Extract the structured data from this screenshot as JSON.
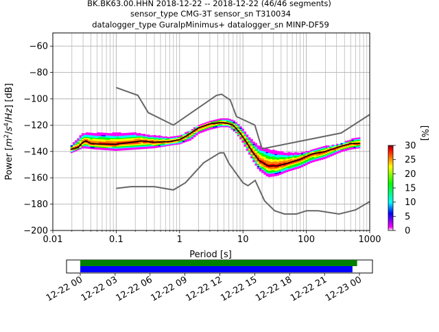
{
  "chart_data": {
    "type": "heatmap",
    "title_lines": [
      "BK.BK63.00.HHN   2018-12-22 -- 2018-12-22  (46/46 segments)",
      "sensor_type CMG-3T sensor_sn T310034",
      "datalogger_type GuralpMinimus+ datalogger_sn MINP-DF59"
    ],
    "xlabel": "Period [s]",
    "ylabel": "Power [m²/s⁴/Hz] [dB]",
    "xscale": "log",
    "xlim": [
      0.01,
      1000
    ],
    "ylim": [
      -200,
      -50
    ],
    "x_ticks": [
      {
        "v": 0.01,
        "label": "0.01"
      },
      {
        "v": 0.1,
        "label": "0.1"
      },
      {
        "v": 1,
        "label": "1"
      },
      {
        "v": 10,
        "label": "10"
      },
      {
        "v": 100,
        "label": "100"
      },
      {
        "v": 1000,
        "label": "1000"
      }
    ],
    "y_ticks": [
      {
        "v": -60,
        "label": "−60"
      },
      {
        "v": -80,
        "label": "−80"
      },
      {
        "v": -100,
        "label": "−100"
      },
      {
        "v": -120,
        "label": "−120"
      },
      {
        "v": -140,
        "label": "−140"
      },
      {
        "v": -160,
        "label": "−160"
      },
      {
        "v": -180,
        "label": "−180"
      },
      {
        "v": -200,
        "label": "−200"
      }
    ],
    "grid": true,
    "colorbar": {
      "label": "[%]",
      "range": [
        0,
        30
      ],
      "ticks": [
        {
          "v": 0,
          "label": "0"
        },
        {
          "v": 5,
          "label": "5"
        },
        {
          "v": 10,
          "label": "10"
        },
        {
          "v": 15,
          "label": "15"
        },
        {
          "v": 20,
          "label": "20"
        },
        {
          "v": 25,
          "label": "25"
        },
        {
          "v": 30,
          "label": "30"
        }
      ],
      "colors": [
        "#ffffff",
        "#ff00ff",
        "#0000ff",
        "#00ffff",
        "#00ff00",
        "#ffff00",
        "#ff8000",
        "#ff0000",
        "#800000"
      ]
    },
    "high_noise_model": [
      [
        0.1,
        -91.5
      ],
      [
        0.22,
        -97.4
      ],
      [
        0.32,
        -110.5
      ],
      [
        0.8,
        -120
      ],
      [
        3.8,
        -97.5
      ],
      [
        4.6,
        -96.5
      ],
      [
        6.3,
        -101
      ],
      [
        7.9,
        -113.5
      ],
      [
        15.4,
        -120
      ],
      [
        20,
        -138
      ],
      [
        354.8,
        -126
      ],
      [
        1000,
        -112
      ]
    ],
    "low_noise_model": [
      [
        0.1,
        -168
      ],
      [
        0.17,
        -166.7
      ],
      [
        0.4,
        -166.7
      ],
      [
        0.8,
        -169.2
      ],
      [
        1.24,
        -163.7
      ],
      [
        2.4,
        -148.6
      ],
      [
        4.3,
        -141.1
      ],
      [
        5,
        -141.1
      ],
      [
        6,
        -149
      ],
      [
        10,
        -163.8
      ],
      [
        12,
        -166
      ],
      [
        15.6,
        -162
      ],
      [
        21.9,
        -177.5
      ],
      [
        31.6,
        -185
      ],
      [
        45,
        -187.5
      ],
      [
        70,
        -187.5
      ],
      [
        101,
        -185
      ],
      [
        154,
        -185
      ],
      [
        328,
        -187.5
      ],
      [
        600,
        -184.4
      ],
      [
        1000,
        -178
      ]
    ],
    "mean_psd": [
      [
        0.019,
        -138.5
      ],
      [
        0.025,
        -137
      ],
      [
        0.03,
        -133
      ],
      [
        0.033,
        -132
      ],
      [
        0.04,
        -134
      ],
      [
        0.06,
        -134.5
      ],
      [
        0.1,
        -134.5
      ],
      [
        0.15,
        -133.5
      ],
      [
        0.25,
        -132
      ],
      [
        0.4,
        -133
      ],
      [
        0.7,
        -132.5
      ],
      [
        1.0,
        -131
      ],
      [
        1.3,
        -128
      ],
      [
        2.0,
        -122
      ],
      [
        3.0,
        -119
      ],
      [
        4.5,
        -118
      ],
      [
        5.5,
        -118.5
      ],
      [
        7.0,
        -120
      ],
      [
        9.0,
        -126
      ],
      [
        11,
        -132
      ],
      [
        14,
        -140
      ],
      [
        18,
        -147
      ],
      [
        25,
        -151
      ],
      [
        35,
        -151
      ],
      [
        50,
        -149
      ],
      [
        80,
        -146
      ],
      [
        120,
        -142
      ],
      [
        200,
        -140
      ],
      [
        350,
        -136
      ],
      [
        500,
        -134
      ],
      [
        700,
        -134
      ]
    ],
    "psd_band": [
      [
        0.019,
        -141,
        -136
      ],
      [
        0.03,
        -137,
        -126
      ],
      [
        0.05,
        -138,
        -126
      ],
      [
        0.1,
        -139,
        -126
      ],
      [
        0.2,
        -138,
        -126
      ],
      [
        0.4,
        -137,
        -128
      ],
      [
        0.7,
        -135,
        -129
      ],
      [
        1,
        -134,
        -128
      ],
      [
        1.5,
        -131,
        -124
      ],
      [
        2,
        -126,
        -120
      ],
      [
        3,
        -123,
        -117
      ],
      [
        4.5,
        -121,
        -115
      ],
      [
        6,
        -121,
        -115
      ],
      [
        8,
        -126,
        -118
      ],
      [
        10,
        -133,
        -123
      ],
      [
        12,
        -140,
        -128
      ],
      [
        15,
        -148,
        -133
      ],
      [
        18,
        -154,
        -136
      ],
      [
        25,
        -159,
        -138
      ],
      [
        35,
        -158,
        -140
      ],
      [
        50,
        -155,
        -141
      ],
      [
        80,
        -152,
        -141
      ],
      [
        120,
        -148,
        -139
      ],
      [
        200,
        -145,
        -136
      ],
      [
        350,
        -140,
        -134
      ],
      [
        500,
        -138,
        -131
      ],
      [
        700,
        -137,
        -129
      ]
    ]
  },
  "timeline": {
    "start": "2018-12-22 00:00",
    "end": "2018-12-23 00:00",
    "coverage": [
      {
        "start_hours": 0,
        "end_hours": 23.8,
        "color": "#008000"
      },
      {
        "start_hours": 0,
        "end_hours": 23.4,
        "color": "#0000ff"
      }
    ],
    "ticks": [
      {
        "hours": 0,
        "label": "12-22 00"
      },
      {
        "hours": 3,
        "label": "12-22 03"
      },
      {
        "hours": 6,
        "label": "12-22 06"
      },
      {
        "hours": 9,
        "label": "12-22 09"
      },
      {
        "hours": 12,
        "label": "12-22 12"
      },
      {
        "hours": 15,
        "label": "12-22 15"
      },
      {
        "hours": 18,
        "label": "12-22 18"
      },
      {
        "hours": 21,
        "label": "12-22 21"
      },
      {
        "hours": 24,
        "label": "12-23 00"
      }
    ]
  }
}
